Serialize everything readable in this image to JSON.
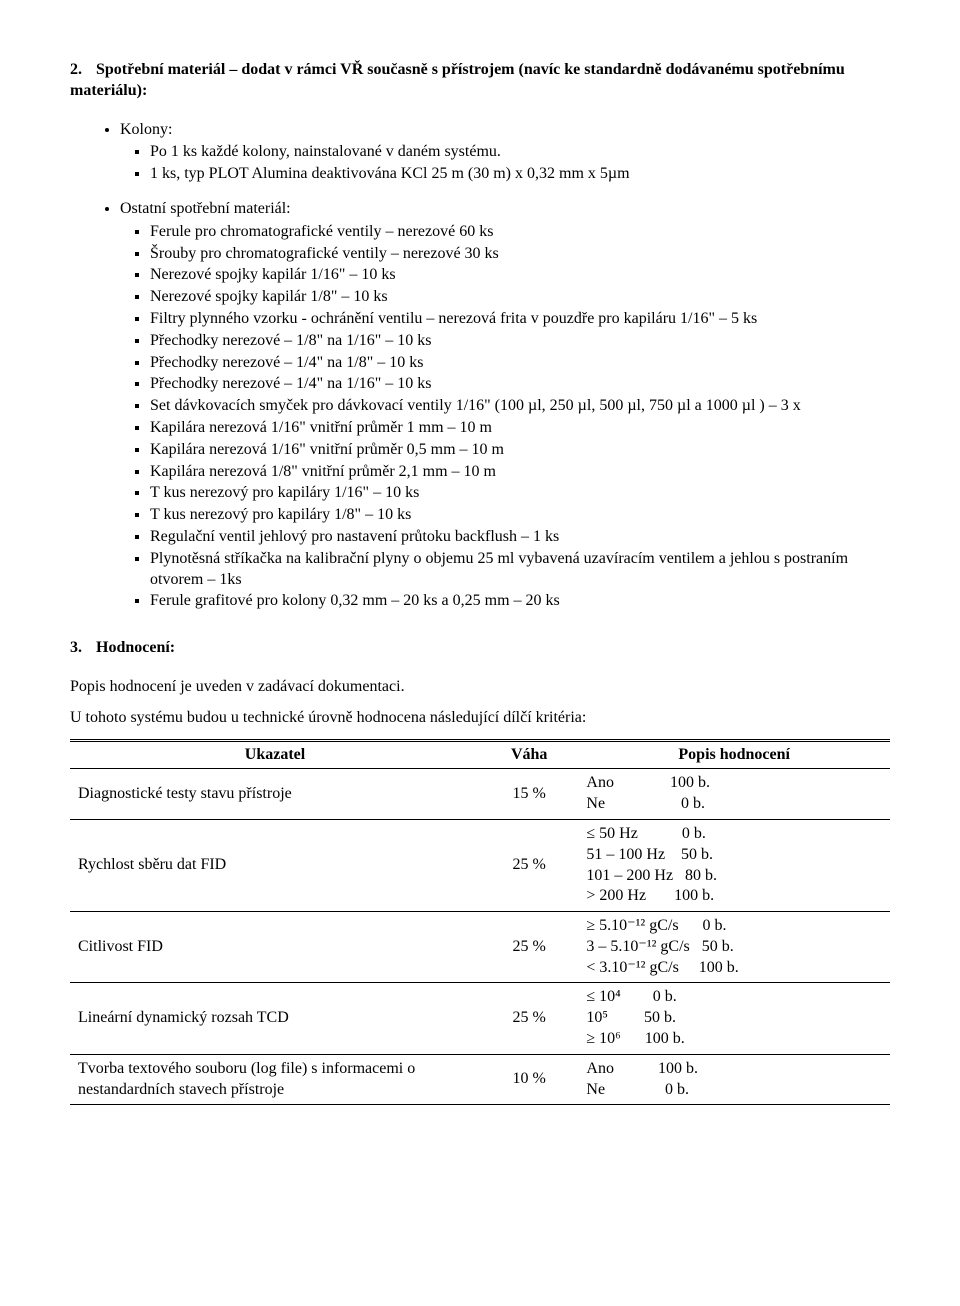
{
  "section2": {
    "number": "2.",
    "title": "Spotřební materiál – dodat v rámci VŘ současně s přístrojem (navíc ke standardně dodávanému spotřebnímu materiálu):",
    "group1": {
      "label": "Kolony:",
      "items": [
        "Po 1 ks každé kolony, nainstalované v daném systému.",
        "1 ks, typ PLOT Alumina deaktivována KCl 25 m (30 m) x 0,32 mm x 5µm"
      ]
    },
    "group2": {
      "label": "Ostatní spotřební materiál:",
      "items": [
        "Ferule pro chromatografické ventily – nerezové 60 ks",
        "Šrouby pro chromatografické ventily – nerezové 30 ks",
        "Nerezové spojky kapilár 1/16\" – 10 ks",
        "Nerezové spojky kapilár 1/8\" – 10 ks",
        "Filtry plynného vzorku  - ochránění ventilu – nerezová frita v pouzdře pro kapiláru 1/16\" – 5 ks",
        "Přechodky nerezové – 1/8\" na 1/16\" – 10 ks",
        "Přechodky nerezové – 1/4\" na 1/8\" – 10 ks",
        "Přechodky nerezové – 1/4\" na 1/16\" – 10 ks",
        "Set dávkovacích smyček pro dávkovací ventily 1/16\" (100 µl, 250 µl, 500 µl, 750 µl a 1000 µl ) – 3 x",
        "Kapilára nerezová 1/16\" vnitřní průměr 1 mm – 10 m",
        "Kapilára nerezová 1/16\" vnitřní průměr 0,5 mm – 10 m",
        "Kapilára nerezová 1/8\" vnitřní průměr 2,1 mm – 10 m",
        "T kus nerezový pro kapiláry 1/16\" – 10 ks",
        "T kus nerezový pro kapiláry 1/8\" – 10 ks",
        "Regulační ventil jehlový pro nastavení průtoku backflush – 1 ks",
        "Plynotěsná stříkačka na kalibrační plyny o objemu 25 ml vybavená uzavíracím ventilem a jehlou s postraním otvorem – 1ks",
        "Ferule grafitové pro kolony 0,32 mm – 20 ks a 0,25 mm – 20 ks"
      ]
    }
  },
  "section3": {
    "number": "3.",
    "title": "Hodnocení:",
    "p1": "Popis hodnocení je uveden v zadávací dokumentaci.",
    "p2": "U tohoto systému budou u technické úrovně hodnocena následující dílčí kritéria:",
    "table": {
      "headers": {
        "u": "Ukazatel",
        "v": "Váha",
        "p": "Popis hodnocení"
      },
      "rows": [
        {
          "u": "Diagnostické testy stavu přístroje",
          "v": "15 %",
          "p": "Ano              100 b.\nNe                   0 b."
        },
        {
          "u": "Rychlost sběru dat FID",
          "v": "25 %",
          "p": "≤ 50 Hz           0 b.\n51 – 100 Hz    50 b.\n101 – 200 Hz   80 b.\n> 200 Hz       100 b."
        },
        {
          "u": "Citlivost FID",
          "v": "25 %",
          "p": "≥ 5.10⁻¹² gC/s      0 b.\n3 – 5.10⁻¹² gC/s   50 b.\n< 3.10⁻¹² gC/s     100 b."
        },
        {
          "u": "Lineární dynamický rozsah TCD",
          "v": "25 %",
          "p": "≤ 10⁴        0 b.\n10⁵         50 b.\n≥ 10⁶      100 b."
        },
        {
          "u": "Tvorba textového souboru (log file) s informacemi o nestandardních stavech přístroje",
          "v": "10 %",
          "p": "Ano           100 b.\nNe               0 b."
        }
      ]
    }
  }
}
